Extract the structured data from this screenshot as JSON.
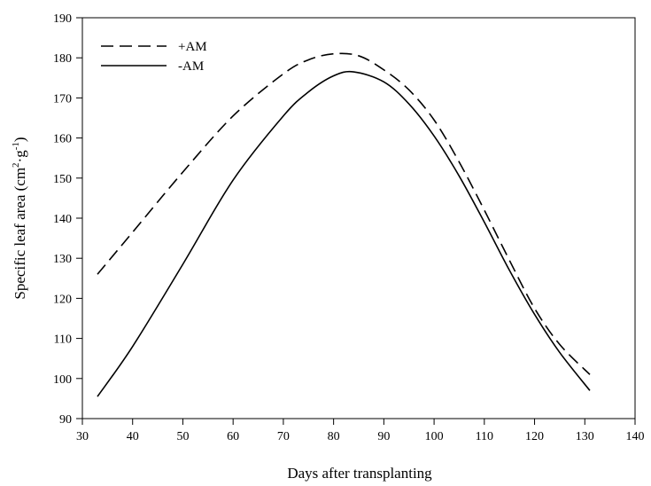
{
  "chart_data": {
    "type": "line",
    "title": "",
    "xlabel": "Days after transplanting",
    "ylabel": {
      "base": "Specific leaf area (cm",
      "sup1": "2",
      "mid": "·g",
      "sup2": "-1",
      "end": ")"
    },
    "xlim": [
      30,
      140
    ],
    "ylim": [
      90,
      190
    ],
    "xticks": [
      30,
      40,
      50,
      60,
      70,
      80,
      90,
      100,
      110,
      120,
      130,
      140
    ],
    "yticks": [
      90,
      100,
      110,
      120,
      130,
      140,
      150,
      160,
      170,
      180,
      190
    ],
    "grid": false,
    "legend_position": "top-left",
    "series": [
      {
        "name": "+AM",
        "line_style": "dashed",
        "color": "#000000",
        "x": [
          33,
          40,
          50,
          60,
          70,
          75,
          80,
          85,
          90,
          95,
          100,
          105,
          110,
          115,
          120,
          125,
          131
        ],
        "y": [
          126,
          136.5,
          151.5,
          165.5,
          176,
          179.5,
          181,
          180.5,
          177,
          172,
          164.5,
          154,
          142,
          129.5,
          117.5,
          108.5,
          101
        ]
      },
      {
        "name": "-AM",
        "line_style": "solid",
        "color": "#000000",
        "x": [
          33,
          40,
          50,
          60,
          70,
          75,
          80,
          84,
          90,
          95,
          100,
          105,
          110,
          115,
          120,
          125,
          131
        ],
        "y": [
          95.5,
          108,
          128.5,
          149.5,
          165.5,
          171.5,
          175.5,
          176.5,
          174,
          168.5,
          160.5,
          150.5,
          139,
          127,
          116,
          106.5,
          97
        ]
      }
    ]
  }
}
